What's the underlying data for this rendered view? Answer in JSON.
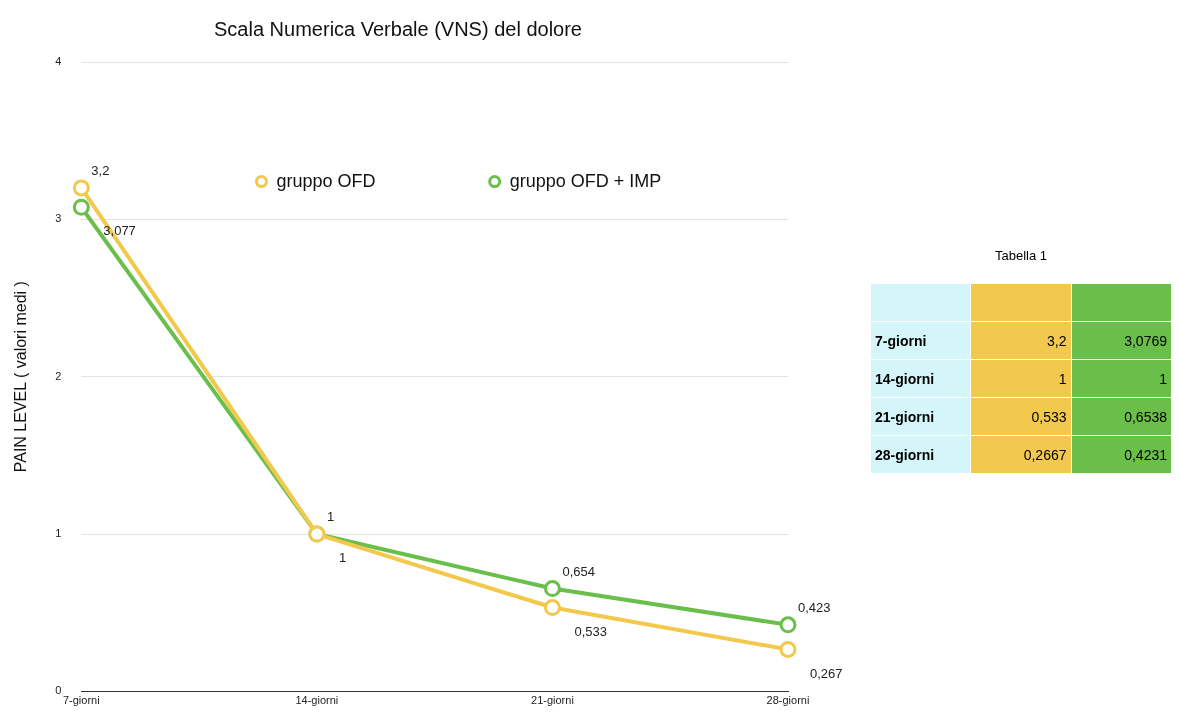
{
  "chart_data": {
    "type": "line",
    "title": "Scala Numerica Verbale (VNS) del dolore",
    "ylabel": "PAIN LEVEL ( valori medi )",
    "categories": [
      "7-giorni",
      "14-giorni",
      "21-giorni",
      "28-giorni"
    ],
    "series": [
      {
        "name": "gruppo OFD",
        "color": "#f2c94c",
        "values": [
          3.2,
          1,
          0.533,
          0.2667
        ],
        "value_labels": [
          "3,2",
          "1",
          "0,533",
          "0,267"
        ]
      },
      {
        "name": "gruppo OFD + IMP",
        "color": "#6abf4b",
        "values": [
          3.0769,
          1,
          0.6538,
          0.4231
        ],
        "value_labels": [
          "3,077",
          "1",
          "0,654",
          "0,423"
        ]
      }
    ],
    "annotations": [
      "Tabella 1",
      "3,2",
      "3,0769",
      "1",
      "1",
      "0,533",
      "0,6538",
      "0,2667",
      "0,4231"
    ],
    "ylim": [
      0,
      4
    ],
    "yticks": [
      0,
      1,
      2,
      3,
      4
    ],
    "grid": "y",
    "legend": "top",
    "marker": "circle",
    "line_style": "solid"
  }
}
